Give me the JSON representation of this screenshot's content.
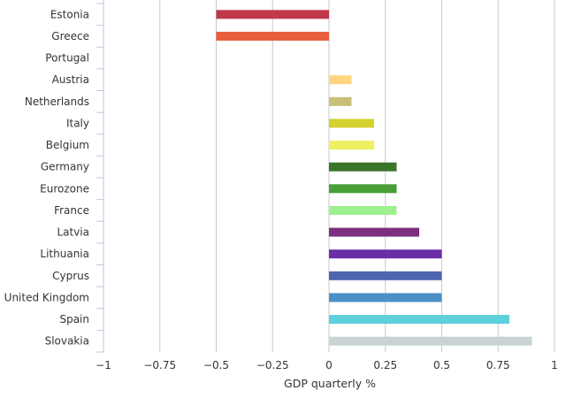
{
  "chart_data": {
    "type": "bar",
    "orientation": "horizontal",
    "categories": [
      "Estonia",
      "Greece",
      "Portugal",
      "Austria",
      "Netherlands",
      "Italy",
      "Belgium",
      "Germany",
      "Eurozone",
      "France",
      "Latvia",
      "Lithuania",
      "Cyprus",
      "United Kingdom",
      "Spain",
      "Slovakia"
    ],
    "values": [
      -0.5,
      -0.5,
      0,
      0.1,
      0.1,
      0.2,
      0.2,
      0.3,
      0.3,
      0.3,
      0.4,
      0.5,
      0.5,
      0.5,
      0.8,
      0.9
    ],
    "colors": [
      "#c0394b",
      "#e85d3a",
      "#cccccc",
      "#ffd580",
      "#c8c07a",
      "#d4d02e",
      "#eff060",
      "#3a7428",
      "#4a9e38",
      "#9ef090",
      "#7d2f7d",
      "#6a2ea8",
      "#5065b0",
      "#4a90c8",
      "#5ed0dc",
      "#c8d4d4"
    ],
    "xlabel": "GDP quarterly %",
    "xlim": [
      -1,
      1
    ],
    "xticks": [
      -1,
      -0.75,
      -0.5,
      -0.25,
      0,
      0.25,
      0.5,
      0.75,
      1
    ],
    "xtick_labels": [
      "−1",
      "−0.75",
      "−0.5",
      "−0.25",
      "0",
      "0.25",
      "0.5",
      "0.75",
      "1"
    ],
    "grid": true,
    "gridline_color": "#c8c8c8",
    "axis_color": "#b8c8dc"
  }
}
